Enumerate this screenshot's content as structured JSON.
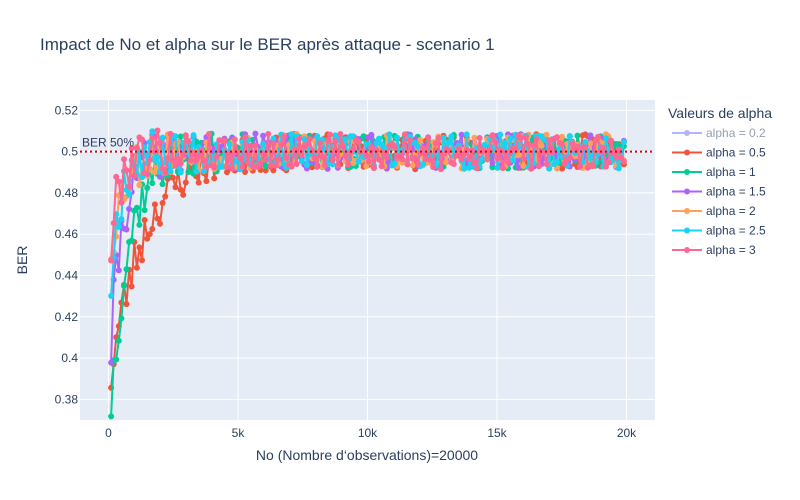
{
  "chart_data": {
    "type": "line",
    "title": "Impact de No et alpha sur le BER après attaque - scenario 1",
    "xlabel": "No (Nombre d‘observations)=20000",
    "ylabel": "BER",
    "xlim": [
      -1100,
      21100
    ],
    "ylim": [
      0.37,
      0.525
    ],
    "x_ticks": [
      0,
      5000,
      10000,
      15000,
      20000
    ],
    "x_tick_labels": [
      "0",
      "5k",
      "10k",
      "15k",
      "20k"
    ],
    "y_ticks": [
      0.38,
      0.4,
      0.42,
      0.44,
      0.46,
      0.48,
      0.5,
      0.52
    ],
    "y_tick_labels": [
      "0.38",
      "0.4",
      "0.42",
      "0.44",
      "0.46",
      "0.48",
      "0.5",
      "0.52"
    ],
    "grid": true,
    "legend_title": "Valeurs de alpha",
    "legend_position": "right",
    "reference_line": {
      "y": 0.5,
      "label": "BER 50%",
      "color": "#e00000",
      "style": "dotted"
    },
    "x_start": 100,
    "x_end": 19900,
    "points_per_series": 200,
    "series": [
      {
        "name": "alpha = 0.2",
        "color": "#636efa",
        "visible": false,
        "y0": 0.4,
        "tau": 700,
        "seed": 11
      },
      {
        "name": "alpha = 0.5",
        "color": "#ef553b",
        "visible": true,
        "y0": 0.393,
        "tau": 1300,
        "seed": 23
      },
      {
        "name": "alpha = 1",
        "color": "#00cc96",
        "visible": true,
        "y0": 0.379,
        "tau": 700,
        "seed": 37
      },
      {
        "name": "alpha = 1.5",
        "color": "#ab63fa",
        "visible": true,
        "y0": 0.405,
        "tau": 450,
        "seed": 41
      },
      {
        "name": "alpha = 2",
        "color": "#ffa15a",
        "visible": true,
        "y0": 0.455,
        "tau": 500,
        "seed": 53
      },
      {
        "name": "alpha = 2.5",
        "color": "#19d3f3",
        "visible": true,
        "y0": 0.437,
        "tau": 350,
        "seed": 67
      },
      {
        "name": "alpha = 3",
        "color": "#ff6692",
        "visible": true,
        "y0": 0.454,
        "tau": 300,
        "seed": 79
      }
    ]
  }
}
